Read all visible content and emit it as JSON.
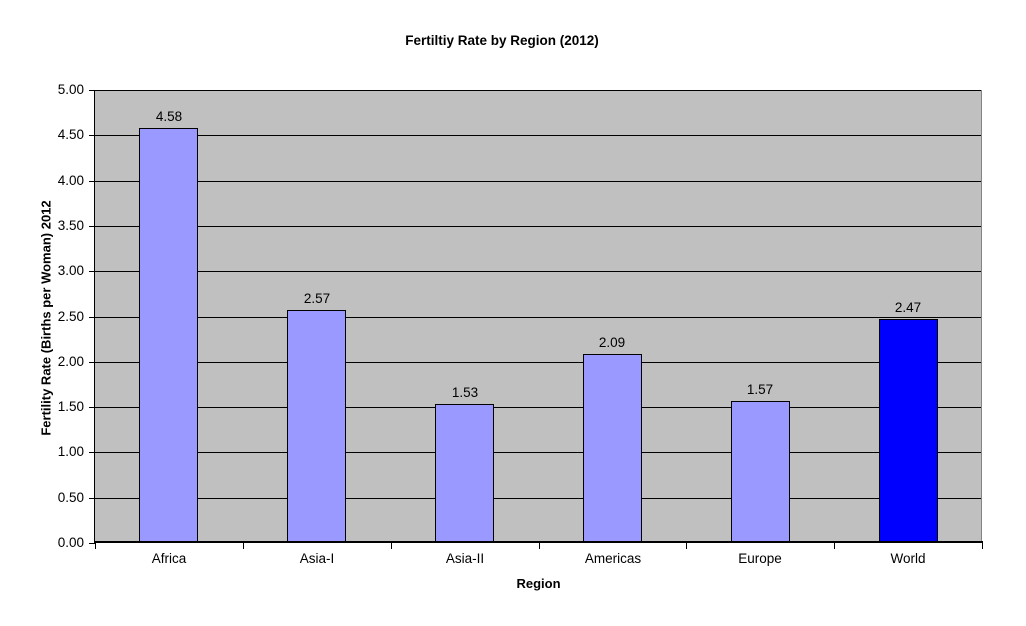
{
  "chart_data": {
    "type": "bar",
    "title": "Fertiltiy Rate by Region (2012)",
    "xlabel": "Region",
    "ylabel": "Fertility Rate (Births per Woman) 2012",
    "categories": [
      "Africa",
      "Asia-I",
      "Asia-II",
      "Americas",
      "Europe",
      "World"
    ],
    "values": [
      4.58,
      2.57,
      1.53,
      2.09,
      1.57,
      2.47
    ],
    "data_labels": [
      "4.58",
      "2.57",
      "1.53",
      "2.09",
      "1.57",
      "2.47"
    ],
    "bar_colors": [
      "#9999FF",
      "#9999FF",
      "#9999FF",
      "#9999FF",
      "#9999FF",
      "#0000FF"
    ],
    "bar_border_color": "#000000",
    "ylim": [
      0,
      5
    ],
    "y_tick_step": 0.5,
    "y_tick_labels": [
      "0.00",
      "0.50",
      "1.00",
      "1.50",
      "2.00",
      "2.50",
      "3.00",
      "3.50",
      "4.00",
      "4.50",
      "5.00"
    ],
    "grid": true,
    "gridline_color": "#000000",
    "plot_background": "#C0C0C0",
    "legend": "none"
  }
}
